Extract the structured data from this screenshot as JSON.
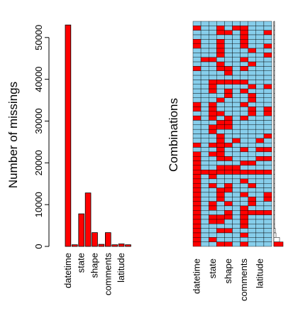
{
  "chart_data": [
    {
      "type": "bar",
      "ylabel": "Number of missings",
      "ylim": [
        0,
        55000
      ],
      "yticks": [
        0,
        10000,
        20000,
        30000,
        40000,
        50000
      ],
      "bar_color": "#ff0000",
      "categories": [
        "datetime",
        "",
        "state",
        "",
        "shape",
        "",
        "comments",
        "",
        "latitude",
        ""
      ],
      "values": [
        53000,
        400,
        7800,
        12800,
        3300,
        500,
        3300,
        400,
        600,
        400
      ]
    },
    {
      "type": "heatmap",
      "ylabel": "Combinations",
      "columns": [
        "datetime",
        "",
        "state",
        "",
        "shape",
        "",
        "comments",
        "",
        "latitude",
        ""
      ],
      "missing_color": "#ff0000",
      "observed_color": "#87ceeb"
    }
  ]
}
